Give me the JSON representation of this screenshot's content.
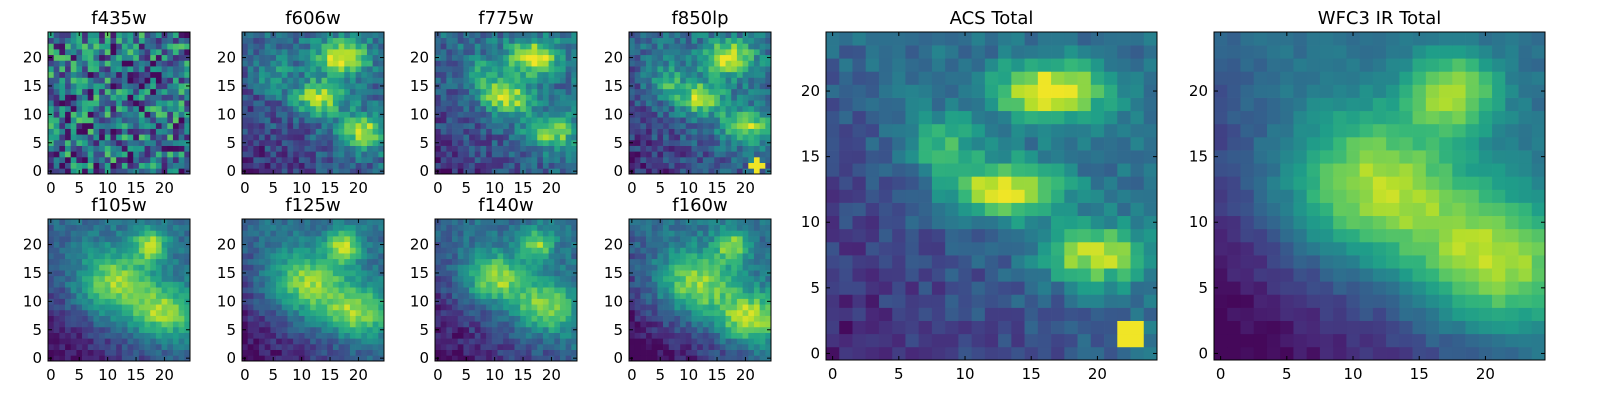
{
  "figure": {
    "colormap": "viridis",
    "colormap_stops": [
      "#440154",
      "#482878",
      "#3e4989",
      "#31688e",
      "#26828e",
      "#1f9e89",
      "#35b779",
      "#6ece58",
      "#b5de2b",
      "#fde725"
    ]
  },
  "chart_data": [
    {
      "type": "heatmap",
      "title": "f435w",
      "grid_size": 25,
      "xticks": [
        "0",
        "5",
        "10",
        "15",
        "20"
      ],
      "yticks": [
        "0",
        "5",
        "10",
        "15",
        "20"
      ],
      "noise": 0.42,
      "blobs": [],
      "spot": null,
      "lowleft": 0.0,
      "seed": 11
    },
    {
      "type": "heatmap",
      "title": "f606w",
      "grid_size": 25,
      "xticks": [
        "0",
        "5",
        "10",
        "15",
        "20"
      ],
      "yticks": [
        "0",
        "5",
        "10",
        "15",
        "20"
      ],
      "noise": 0.17,
      "blobs": [
        [
          17,
          20,
          3.0,
          2.0,
          0.75
        ],
        [
          13,
          13,
          3.0,
          2.0,
          0.6
        ],
        [
          21,
          7,
          3.0,
          2.0,
          0.55
        ],
        [
          5,
          17,
          2.0,
          2.0,
          0.25
        ]
      ],
      "spot": null,
      "lowleft": 0.3,
      "seed": 21
    },
    {
      "type": "heatmap",
      "title": "f775w",
      "grid_size": 25,
      "xticks": [
        "0",
        "5",
        "10",
        "15",
        "20"
      ],
      "yticks": [
        "0",
        "5",
        "10",
        "15",
        "20"
      ],
      "noise": 0.16,
      "blobs": [
        [
          17,
          20,
          3.0,
          2.0,
          0.75
        ],
        [
          12,
          13,
          3.0,
          2.0,
          0.65
        ],
        [
          20,
          7,
          3.0,
          2.0,
          0.55
        ],
        [
          8,
          17,
          2.0,
          2.0,
          0.3
        ]
      ],
      "spot": null,
      "lowleft": 0.3,
      "seed": 31
    },
    {
      "type": "heatmap",
      "title": "f850lp",
      "grid_size": 25,
      "xticks": [
        "0",
        "5",
        "10",
        "15",
        "20"
      ],
      "yticks": [
        "0",
        "5",
        "10",
        "15",
        "20"
      ],
      "noise": 0.16,
      "blobs": [
        [
          17,
          20,
          3.0,
          2.0,
          0.7
        ],
        [
          12,
          13,
          3.0,
          2.0,
          0.6
        ],
        [
          20,
          8,
          3.0,
          2.0,
          0.55
        ],
        [
          6,
          16,
          2.0,
          2.0,
          0.35
        ]
      ],
      "spot": [
        22,
        1,
        0.85
      ],
      "lowleft": 0.3,
      "seed": 41
    },
    {
      "type": "heatmap",
      "title": "ACS Total",
      "grid_size": 25,
      "xticks": [
        "0",
        "5",
        "10",
        "15",
        "20"
      ],
      "yticks": [
        "0",
        "5",
        "10",
        "15",
        "20"
      ],
      "noise": 0.1,
      "blobs": [
        [
          16.5,
          20,
          3.0,
          1.5,
          0.75
        ],
        [
          13,
          12.5,
          3.0,
          1.5,
          0.7
        ],
        [
          20,
          7.5,
          3.0,
          1.5,
          0.6
        ],
        [
          8,
          16,
          2.0,
          1.5,
          0.35
        ]
      ],
      "spot": [
        22.5,
        1.5,
        0.8
      ],
      "lowleft": 0.35,
      "seed": 51
    },
    {
      "type": "heatmap",
      "title": "f105w",
      "grid_size": 25,
      "xticks": [
        "0",
        "5",
        "10",
        "15",
        "20"
      ],
      "yticks": [
        "0",
        "5",
        "10",
        "15",
        "20"
      ],
      "noise": 0.1,
      "blobs": [
        [
          17.5,
          20,
          2.0,
          2.0,
          0.55
        ],
        [
          11,
          13,
          5.0,
          4.0,
          0.55
        ],
        [
          20,
          8,
          4.0,
          3.0,
          0.5
        ]
      ],
      "spot": null,
      "lowleft": 0.45,
      "seed": 61
    },
    {
      "type": "heatmap",
      "title": "f125w",
      "grid_size": 25,
      "xticks": [
        "0",
        "5",
        "10",
        "15",
        "20"
      ],
      "yticks": [
        "0",
        "5",
        "10",
        "15",
        "20"
      ],
      "noise": 0.1,
      "blobs": [
        [
          17.5,
          20,
          2.0,
          2.0,
          0.55
        ],
        [
          11,
          13,
          5.0,
          4.0,
          0.55
        ],
        [
          20,
          8,
          4.0,
          3.0,
          0.5
        ]
      ],
      "spot": null,
      "lowleft": 0.45,
      "seed": 71
    },
    {
      "type": "heatmap",
      "title": "f140w",
      "grid_size": 25,
      "xticks": [
        "0",
        "5",
        "10",
        "15",
        "20"
      ],
      "yticks": [
        "0",
        "5",
        "10",
        "15",
        "20"
      ],
      "noise": 0.11,
      "blobs": [
        [
          17.5,
          20,
          2.0,
          2.0,
          0.5
        ],
        [
          10,
          14,
          4.0,
          3.0,
          0.55
        ],
        [
          19,
          9,
          4.0,
          3.0,
          0.5
        ]
      ],
      "spot": null,
      "lowleft": 0.45,
      "seed": 81
    },
    {
      "type": "heatmap",
      "title": "f160w",
      "grid_size": 25,
      "xticks": [
        "0",
        "5",
        "10",
        "15",
        "20"
      ],
      "yticks": [
        "0",
        "5",
        "10",
        "15",
        "20"
      ],
      "noise": 0.11,
      "blobs": [
        [
          17.5,
          20,
          2.0,
          2.0,
          0.5
        ],
        [
          11,
          13,
          5.0,
          4.0,
          0.55
        ],
        [
          21,
          7,
          4.0,
          3.0,
          0.6
        ]
      ],
      "spot": null,
      "lowleft": 0.5,
      "seed": 91
    },
    {
      "type": "heatmap",
      "title": "WFC3 IR Total",
      "grid_size": 25,
      "xticks": [
        "0",
        "5",
        "10",
        "15",
        "20"
      ],
      "yticks": [
        "0",
        "5",
        "10",
        "15",
        "20"
      ],
      "noise": 0.05,
      "blobs": [
        [
          17.5,
          20,
          2.5,
          2.0,
          0.55
        ],
        [
          11.5,
          12.5,
          5.0,
          4.0,
          0.6
        ],
        [
          21,
          7,
          4.5,
          3.5,
          0.55
        ]
      ],
      "spot": null,
      "lowleft": 0.5,
      "seed": 101
    }
  ]
}
